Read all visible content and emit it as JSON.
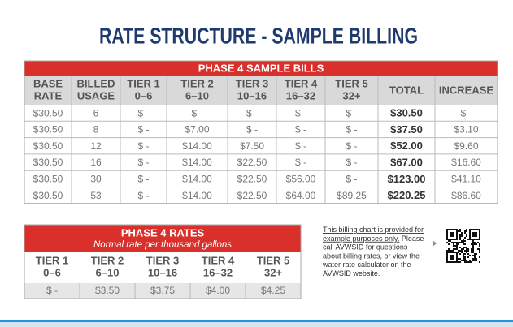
{
  "title": "RATE STRUCTURE - SAMPLE BILLING",
  "bills": {
    "banner": "PHASE 4 SAMPLE BILLS",
    "headers": [
      [
        "BASE",
        "RATE"
      ],
      [
        "BILLED",
        "USAGE"
      ],
      [
        "TIER 1",
        "0–6"
      ],
      [
        "TIER 2",
        "6–10"
      ],
      [
        "TIER 3",
        "10–16"
      ],
      [
        "TIER 4",
        "16–32"
      ],
      [
        "TIER 5",
        "32+"
      ],
      [
        "TOTAL"
      ],
      [
        "INCREASE"
      ]
    ],
    "rows": [
      [
        "$30.50",
        "6",
        "$ -",
        "$ -",
        "$ -",
        "$ -",
        "$ -",
        "$30.50",
        "$ -"
      ],
      [
        "$30.50",
        "8",
        "$ -",
        "$7.00",
        "$ -",
        "$ -",
        "$ -",
        "$37.50",
        "$3.10"
      ],
      [
        "$30.50",
        "12",
        "$ -",
        "$14.00",
        "$7.50",
        "$ -",
        "$ -",
        "$52.00",
        "$9.60"
      ],
      [
        "$30.50",
        "16",
        "$ -",
        "$14.00",
        "$22.50",
        "$ -",
        "$ -",
        "$67.00",
        "$16.60"
      ],
      [
        "$30.50",
        "30",
        "$ -",
        "$14.00",
        "$22.50",
        "$56.00",
        "$ -",
        "$123.00",
        "$41.10"
      ],
      [
        "$30.50",
        "53",
        "$ -",
        "$14.00",
        "$22.50",
        "$64.00",
        "$89.25",
        "$220.25",
        "$86.60"
      ]
    ]
  },
  "rates": {
    "banner": "PHASE 4 RATES",
    "subtitle": "Normal rate per thousand gallons",
    "headers": [
      [
        "TIER 1",
        "0–6"
      ],
      [
        "TIER 2",
        "6–10"
      ],
      [
        "TIER 3",
        "10–16"
      ],
      [
        "TIER 4",
        "16–32"
      ],
      [
        "TIER 5",
        "32+"
      ]
    ],
    "row": [
      "$ -",
      "$3.50",
      "$3.75",
      "$4.00",
      "$4.25"
    ]
  },
  "note": {
    "lines": [
      [
        "This billing chart is provided for"
      ],
      [
        "example purposes only.",
        " Please"
      ],
      [
        "call AVWSID for questions"
      ],
      [
        "about billing rates, or view the"
      ],
      [
        "water rate calculator on the"
      ],
      [
        "AVWSID website."
      ]
    ]
  }
}
